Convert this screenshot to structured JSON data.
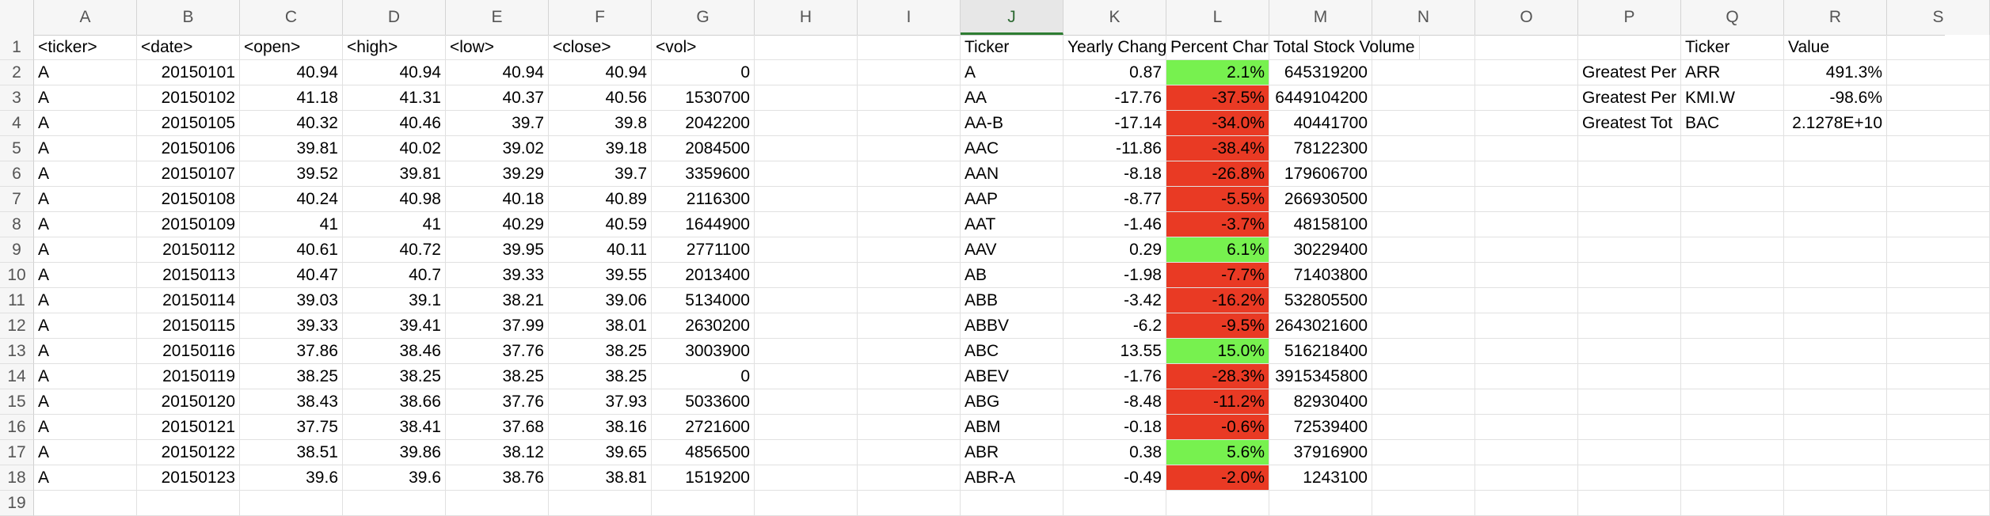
{
  "sheet": {
    "columns": [
      "A",
      "B",
      "C",
      "D",
      "E",
      "F",
      "G",
      "H",
      "I",
      "J",
      "K",
      "L",
      "M",
      "N",
      "O",
      "P",
      "Q",
      "R",
      "S"
    ],
    "selected_column": "J",
    "row_numbers": [
      "1",
      "2",
      "3",
      "4",
      "5",
      "6",
      "7",
      "8",
      "9",
      "10",
      "11",
      "12",
      "13",
      "14",
      "15",
      "16",
      "17",
      "18",
      "19"
    ],
    "colors": {
      "positive_fill": "#77f14f",
      "negative_fill": "#e93a24",
      "header_bg": "#f6f6f6",
      "gridline": "#e1e1e1"
    },
    "raw_data": {
      "headers": [
        "<ticker>",
        "<date>",
        "<open>",
        "<high>",
        "<low>",
        "<close>",
        "<vol>"
      ],
      "rows": [
        [
          "A",
          "20150101",
          "40.94",
          "40.94",
          "40.94",
          "40.94",
          "0"
        ],
        [
          "A",
          "20150102",
          "41.18",
          "41.31",
          "40.37",
          "40.56",
          "1530700"
        ],
        [
          "A",
          "20150105",
          "40.32",
          "40.46",
          "39.7",
          "39.8",
          "2042200"
        ],
        [
          "A",
          "20150106",
          "39.81",
          "40.02",
          "39.02",
          "39.18",
          "2084500"
        ],
        [
          "A",
          "20150107",
          "39.52",
          "39.81",
          "39.29",
          "39.7",
          "3359600"
        ],
        [
          "A",
          "20150108",
          "40.24",
          "40.98",
          "40.18",
          "40.89",
          "2116300"
        ],
        [
          "A",
          "20150109",
          "41",
          "41",
          "40.29",
          "40.59",
          "1644900"
        ],
        [
          "A",
          "20150112",
          "40.61",
          "40.72",
          "39.95",
          "40.11",
          "2771100"
        ],
        [
          "A",
          "20150113",
          "40.47",
          "40.7",
          "39.33",
          "39.55",
          "2013400"
        ],
        [
          "A",
          "20150114",
          "39.03",
          "39.1",
          "38.21",
          "39.06",
          "5134000"
        ],
        [
          "A",
          "20150115",
          "39.33",
          "39.41",
          "37.99",
          "38.01",
          "2630200"
        ],
        [
          "A",
          "20150116",
          "37.86",
          "38.46",
          "37.76",
          "38.25",
          "3003900"
        ],
        [
          "A",
          "20150119",
          "38.25",
          "38.25",
          "38.25",
          "38.25",
          "0"
        ],
        [
          "A",
          "20150120",
          "38.43",
          "38.66",
          "37.76",
          "37.93",
          "5033600"
        ],
        [
          "A",
          "20150121",
          "37.75",
          "38.41",
          "37.68",
          "38.16",
          "2721600"
        ],
        [
          "A",
          "20150122",
          "38.51",
          "39.86",
          "38.12",
          "39.65",
          "4856500"
        ],
        [
          "A",
          "20150123",
          "39.6",
          "39.6",
          "38.76",
          "38.81",
          "1519200"
        ]
      ]
    },
    "summary": {
      "headers": [
        "Ticker",
        "Yearly Chang",
        "Percent Char",
        "Total Stock Volume"
      ],
      "rows": [
        {
          "ticker": "A",
          "yearly_change": "0.87",
          "percent_change": "2.1%",
          "positive": true,
          "total_volume": "645319200"
        },
        {
          "ticker": "AA",
          "yearly_change": "-17.76",
          "percent_change": "-37.5%",
          "positive": false,
          "total_volume": "6449104200"
        },
        {
          "ticker": "AA-B",
          "yearly_change": "-17.14",
          "percent_change": "-34.0%",
          "positive": false,
          "total_volume": "40441700"
        },
        {
          "ticker": "AAC",
          "yearly_change": "-11.86",
          "percent_change": "-38.4%",
          "positive": false,
          "total_volume": "78122300"
        },
        {
          "ticker": "AAN",
          "yearly_change": "-8.18",
          "percent_change": "-26.8%",
          "positive": false,
          "total_volume": "179606700"
        },
        {
          "ticker": "AAP",
          "yearly_change": "-8.77",
          "percent_change": "-5.5%",
          "positive": false,
          "total_volume": "266930500"
        },
        {
          "ticker": "AAT",
          "yearly_change": "-1.46",
          "percent_change": "-3.7%",
          "positive": false,
          "total_volume": "48158100"
        },
        {
          "ticker": "AAV",
          "yearly_change": "0.29",
          "percent_change": "6.1%",
          "positive": true,
          "total_volume": "30229400"
        },
        {
          "ticker": "AB",
          "yearly_change": "-1.98",
          "percent_change": "-7.7%",
          "positive": false,
          "total_volume": "71403800"
        },
        {
          "ticker": "ABB",
          "yearly_change": "-3.42",
          "percent_change": "-16.2%",
          "positive": false,
          "total_volume": "532805500"
        },
        {
          "ticker": "ABBV",
          "yearly_change": "-6.2",
          "percent_change": "-9.5%",
          "positive": false,
          "total_volume": "2643021600"
        },
        {
          "ticker": "ABC",
          "yearly_change": "13.55",
          "percent_change": "15.0%",
          "positive": true,
          "total_volume": "516218400"
        },
        {
          "ticker": "ABEV",
          "yearly_change": "-1.76",
          "percent_change": "-28.3%",
          "positive": false,
          "total_volume": "3915345800"
        },
        {
          "ticker": "ABG",
          "yearly_change": "-8.48",
          "percent_change": "-11.2%",
          "positive": false,
          "total_volume": "82930400"
        },
        {
          "ticker": "ABM",
          "yearly_change": "-0.18",
          "percent_change": "-0.6%",
          "positive": false,
          "total_volume": "72539400"
        },
        {
          "ticker": "ABR",
          "yearly_change": "0.38",
          "percent_change": "5.6%",
          "positive": true,
          "total_volume": "37916900"
        },
        {
          "ticker": "ABR-A",
          "yearly_change": "-0.49",
          "percent_change": "-2.0%",
          "positive": false,
          "total_volume": "1243100"
        }
      ]
    },
    "greatest": {
      "headers": [
        "Ticker",
        "Value"
      ],
      "rows": [
        {
          "label": "Greatest Per",
          "ticker": "ARR",
          "value": "491.3%"
        },
        {
          "label": "Greatest Per",
          "ticker": "KMI.W",
          "value": "-98.6%"
        },
        {
          "label": "Greatest Tot",
          "ticker": "BAC",
          "value": "2.1278E+10"
        }
      ]
    }
  }
}
